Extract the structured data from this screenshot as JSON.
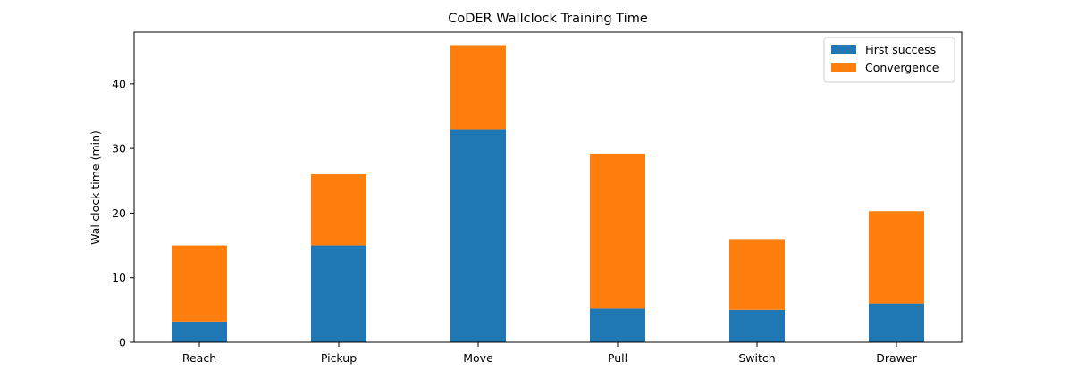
{
  "chart_data": {
    "type": "bar",
    "stacked": true,
    "title": "CoDER Wallclock Training Time",
    "xlabel": "",
    "ylabel": "Wallclock time (min)",
    "categories": [
      "Reach",
      "Pickup",
      "Move",
      "Pull",
      "Switch",
      "Drawer"
    ],
    "series": [
      {
        "name": "First success",
        "color": "#1f77b4",
        "values": [
          3.2,
          15.0,
          33.0,
          5.2,
          5.0,
          6.0
        ]
      },
      {
        "name": "Convergence",
        "color": "#ff7f0e",
        "values": [
          11.8,
          11.0,
          13.0,
          24.0,
          11.0,
          14.3
        ]
      }
    ],
    "ylim": [
      0,
      48
    ],
    "yticks": [
      0,
      10,
      20,
      30,
      40
    ],
    "grid": false,
    "legend_position": "top-right"
  }
}
